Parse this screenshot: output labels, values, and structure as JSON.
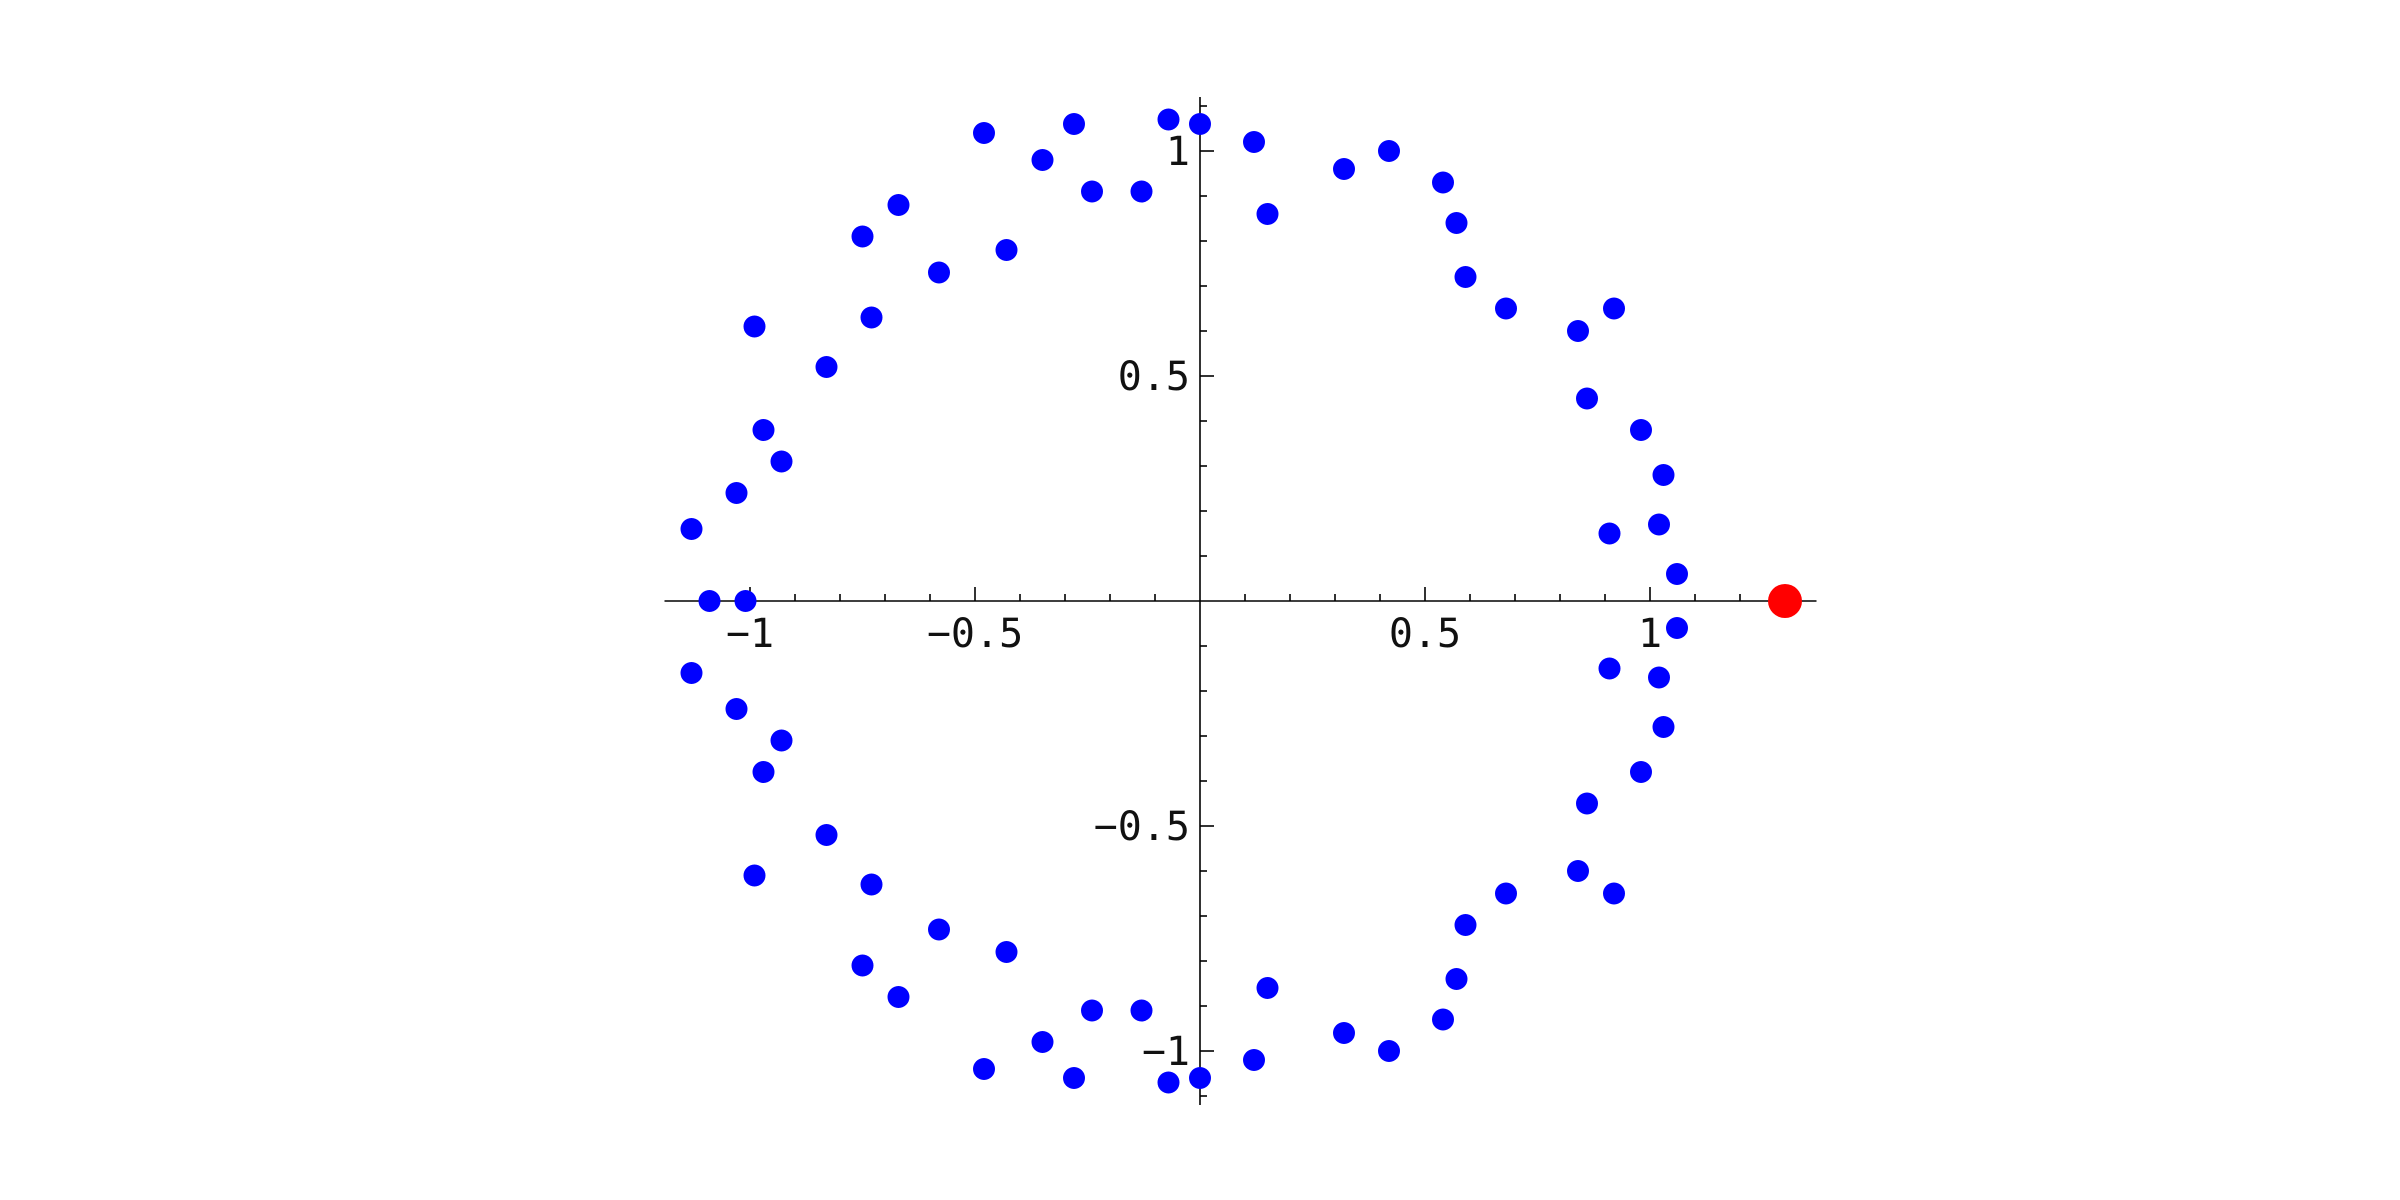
{
  "chart_data": {
    "type": "scatter",
    "title": "",
    "xlabel": "",
    "ylabel": "",
    "xlim": [
      -1.19,
      1.37
    ],
    "ylim": [
      -1.12,
      1.12
    ],
    "grid": false,
    "axes_origin": [
      0,
      0
    ],
    "x_ticks": [
      {
        "value": -1,
        "label": "−1"
      },
      {
        "value": -0.5,
        "label": "−0.5"
      },
      {
        "value": 0.5,
        "label": "0.5"
      },
      {
        "value": 1,
        "label": "1"
      }
    ],
    "y_ticks": [
      {
        "value": -1,
        "label": "−1"
      },
      {
        "value": -0.5,
        "label": "−0.5"
      },
      {
        "value": 0.5,
        "label": "0.5"
      },
      {
        "value": 1,
        "label": "1"
      }
    ],
    "x_minor_step": 0.1,
    "y_minor_step": 0.1,
    "series": [
      {
        "color": "#0000ff",
        "points": [
          [
            1.3,
            0.0
          ],
          [
            1.06,
            0.06
          ],
          [
            1.06,
            -0.06
          ],
          [
            1.02,
            0.17
          ],
          [
            1.02,
            -0.17
          ],
          [
            1.03,
            0.28
          ],
          [
            1.03,
            -0.28
          ],
          [
            0.98,
            0.38
          ],
          [
            0.98,
            -0.38
          ],
          [
            0.91,
            0.15
          ],
          [
            0.91,
            -0.15
          ],
          [
            0.86,
            0.45
          ],
          [
            0.86,
            -0.45
          ],
          [
            0.84,
            0.6
          ],
          [
            0.84,
            -0.6
          ],
          [
            0.92,
            0.65
          ],
          [
            0.92,
            -0.65
          ],
          [
            0.68,
            0.65
          ],
          [
            0.68,
            -0.65
          ],
          [
            0.59,
            0.72
          ],
          [
            0.59,
            -0.72
          ],
          [
            0.57,
            0.84
          ],
          [
            0.57,
            -0.84
          ],
          [
            0.54,
            0.93
          ],
          [
            0.54,
            -0.93
          ],
          [
            0.42,
            1.0
          ],
          [
            0.42,
            -1.0
          ],
          [
            0.32,
            0.96
          ],
          [
            0.32,
            -0.96
          ],
          [
            0.15,
            0.86
          ],
          [
            0.15,
            -0.86
          ],
          [
            0.12,
            1.02
          ],
          [
            0.12,
            -1.02
          ],
          [
            0.0,
            1.06
          ],
          [
            0.0,
            -1.06
          ],
          [
            -0.07,
            1.07
          ],
          [
            -0.07,
            -1.07
          ],
          [
            -0.13,
            0.91
          ],
          [
            -0.13,
            -0.91
          ],
          [
            -0.24,
            0.91
          ],
          [
            -0.24,
            -0.91
          ],
          [
            -0.28,
            1.06
          ],
          [
            -0.28,
            -1.06
          ],
          [
            -0.35,
            0.98
          ],
          [
            -0.35,
            -0.98
          ],
          [
            -0.43,
            0.78
          ],
          [
            -0.43,
            -0.78
          ],
          [
            -0.48,
            1.04
          ],
          [
            -0.48,
            -1.04
          ],
          [
            -0.58,
            0.73
          ],
          [
            -0.58,
            -0.73
          ],
          [
            -0.67,
            0.88
          ],
          [
            -0.67,
            -0.88
          ],
          [
            -0.73,
            0.63
          ],
          [
            -0.73,
            -0.63
          ],
          [
            -0.75,
            0.81
          ],
          [
            -0.75,
            -0.81
          ],
          [
            -0.83,
            0.52
          ],
          [
            -0.83,
            -0.52
          ],
          [
            -0.93,
            0.31
          ],
          [
            -0.93,
            -0.31
          ],
          [
            -0.97,
            0.38
          ],
          [
            -0.97,
            -0.38
          ],
          [
            -0.99,
            0.61
          ],
          [
            -0.99,
            -0.61
          ],
          [
            -1.01,
            0.0
          ],
          [
            -1.03,
            0.24
          ],
          [
            -1.03,
            -0.24
          ],
          [
            -1.09,
            0.0
          ],
          [
            -1.13,
            0.16
          ],
          [
            -1.13,
            -0.16
          ]
        ]
      },
      {
        "color": "#ff0000",
        "points": [
          [
            1.3,
            0.0
          ]
        ]
      }
    ]
  }
}
